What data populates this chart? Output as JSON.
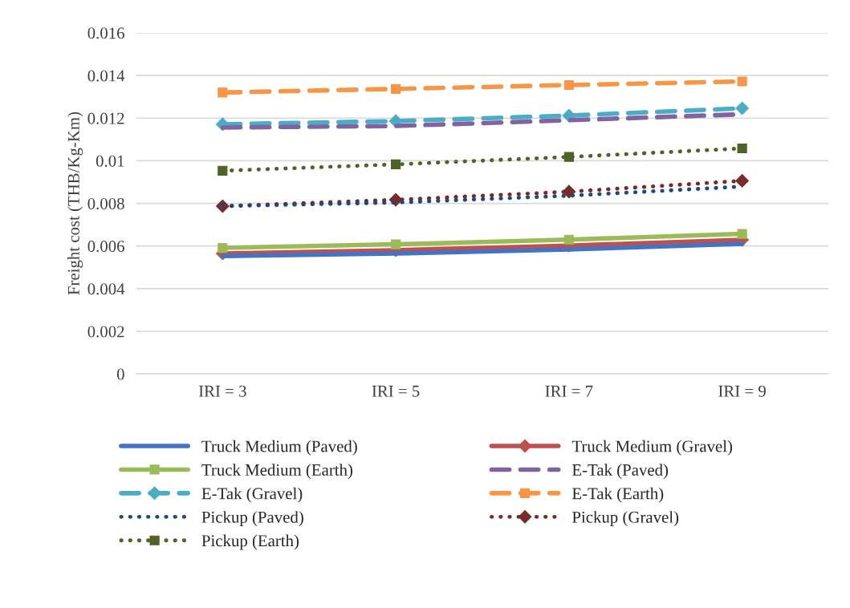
{
  "chart_data": {
    "type": "line",
    "ylabel": "Freight cost (THB/Kg-Km)",
    "categories": [
      "IRI = 3",
      "IRI = 5",
      "IRI = 7",
      "IRI = 9"
    ],
    "ylim": [
      0,
      0.016
    ],
    "yticks": [
      {
        "value": 0,
        "label": "0"
      },
      {
        "value": 0.002,
        "label": "0.002"
      },
      {
        "value": 0.004,
        "label": "0.004"
      },
      {
        "value": 0.006,
        "label": "0.006"
      },
      {
        "value": 0.008,
        "label": "0.008"
      },
      {
        "value": 0.01,
        "label": "0.01"
      },
      {
        "value": 0.012,
        "label": "0.012"
      },
      {
        "value": 0.014,
        "label": "0.014"
      },
      {
        "value": 0.016,
        "label": "0.016"
      }
    ],
    "grid": "y",
    "legend": "bottom",
    "series": [
      {
        "name": "Truck Medium (Paved)",
        "color": "#4472c4",
        "marker": "none",
        "line_style": "solid",
        "values": [
          0.00553,
          0.00565,
          0.00584,
          0.0061
        ]
      },
      {
        "name": "Truck Medium (Gravel)",
        "color": "#c0504d",
        "marker": "diamond",
        "line_style": "solid",
        "values": [
          0.00565,
          0.0058,
          0.00602,
          0.00629
        ]
      },
      {
        "name": "Truck Medium (Earth)",
        "color": "#9bbb59",
        "marker": "square",
        "line_style": "solid",
        "values": [
          0.00591,
          0.00608,
          0.0063,
          0.00657
        ]
      },
      {
        "name": "E-Tak (Paved)",
        "color": "#8064a2",
        "marker": "none",
        "line_style": "dashed",
        "values": [
          0.01156,
          0.01163,
          0.0119,
          0.01218
        ]
      },
      {
        "name": "E-Tak (Gravel)",
        "color": "#4bacc6",
        "marker": "diamond",
        "line_style": "dashed",
        "values": [
          0.01171,
          0.01186,
          0.01212,
          0.01246
        ]
      },
      {
        "name": "E-Tak (Earth)",
        "color": "#f79646",
        "marker": "square",
        "line_style": "dashed",
        "values": [
          0.0132,
          0.01337,
          0.01355,
          0.01372
        ]
      },
      {
        "name": "Pickup (Paved)",
        "color": "#1f497d",
        "marker": "none",
        "line_style": "dotted",
        "values": [
          0.00787,
          0.00804,
          0.00836,
          0.00879
        ]
      },
      {
        "name": "Pickup (Gravel)",
        "color": "#772c2a",
        "marker": "diamond",
        "line_style": "dotted",
        "values": [
          0.00787,
          0.00817,
          0.00855,
          0.00906
        ]
      },
      {
        "name": "Pickup (Earth)",
        "color": "#4f6228",
        "marker": "square",
        "line_style": "dotted",
        "values": [
          0.00953,
          0.00983,
          0.01018,
          0.01058
        ]
      }
    ]
  }
}
